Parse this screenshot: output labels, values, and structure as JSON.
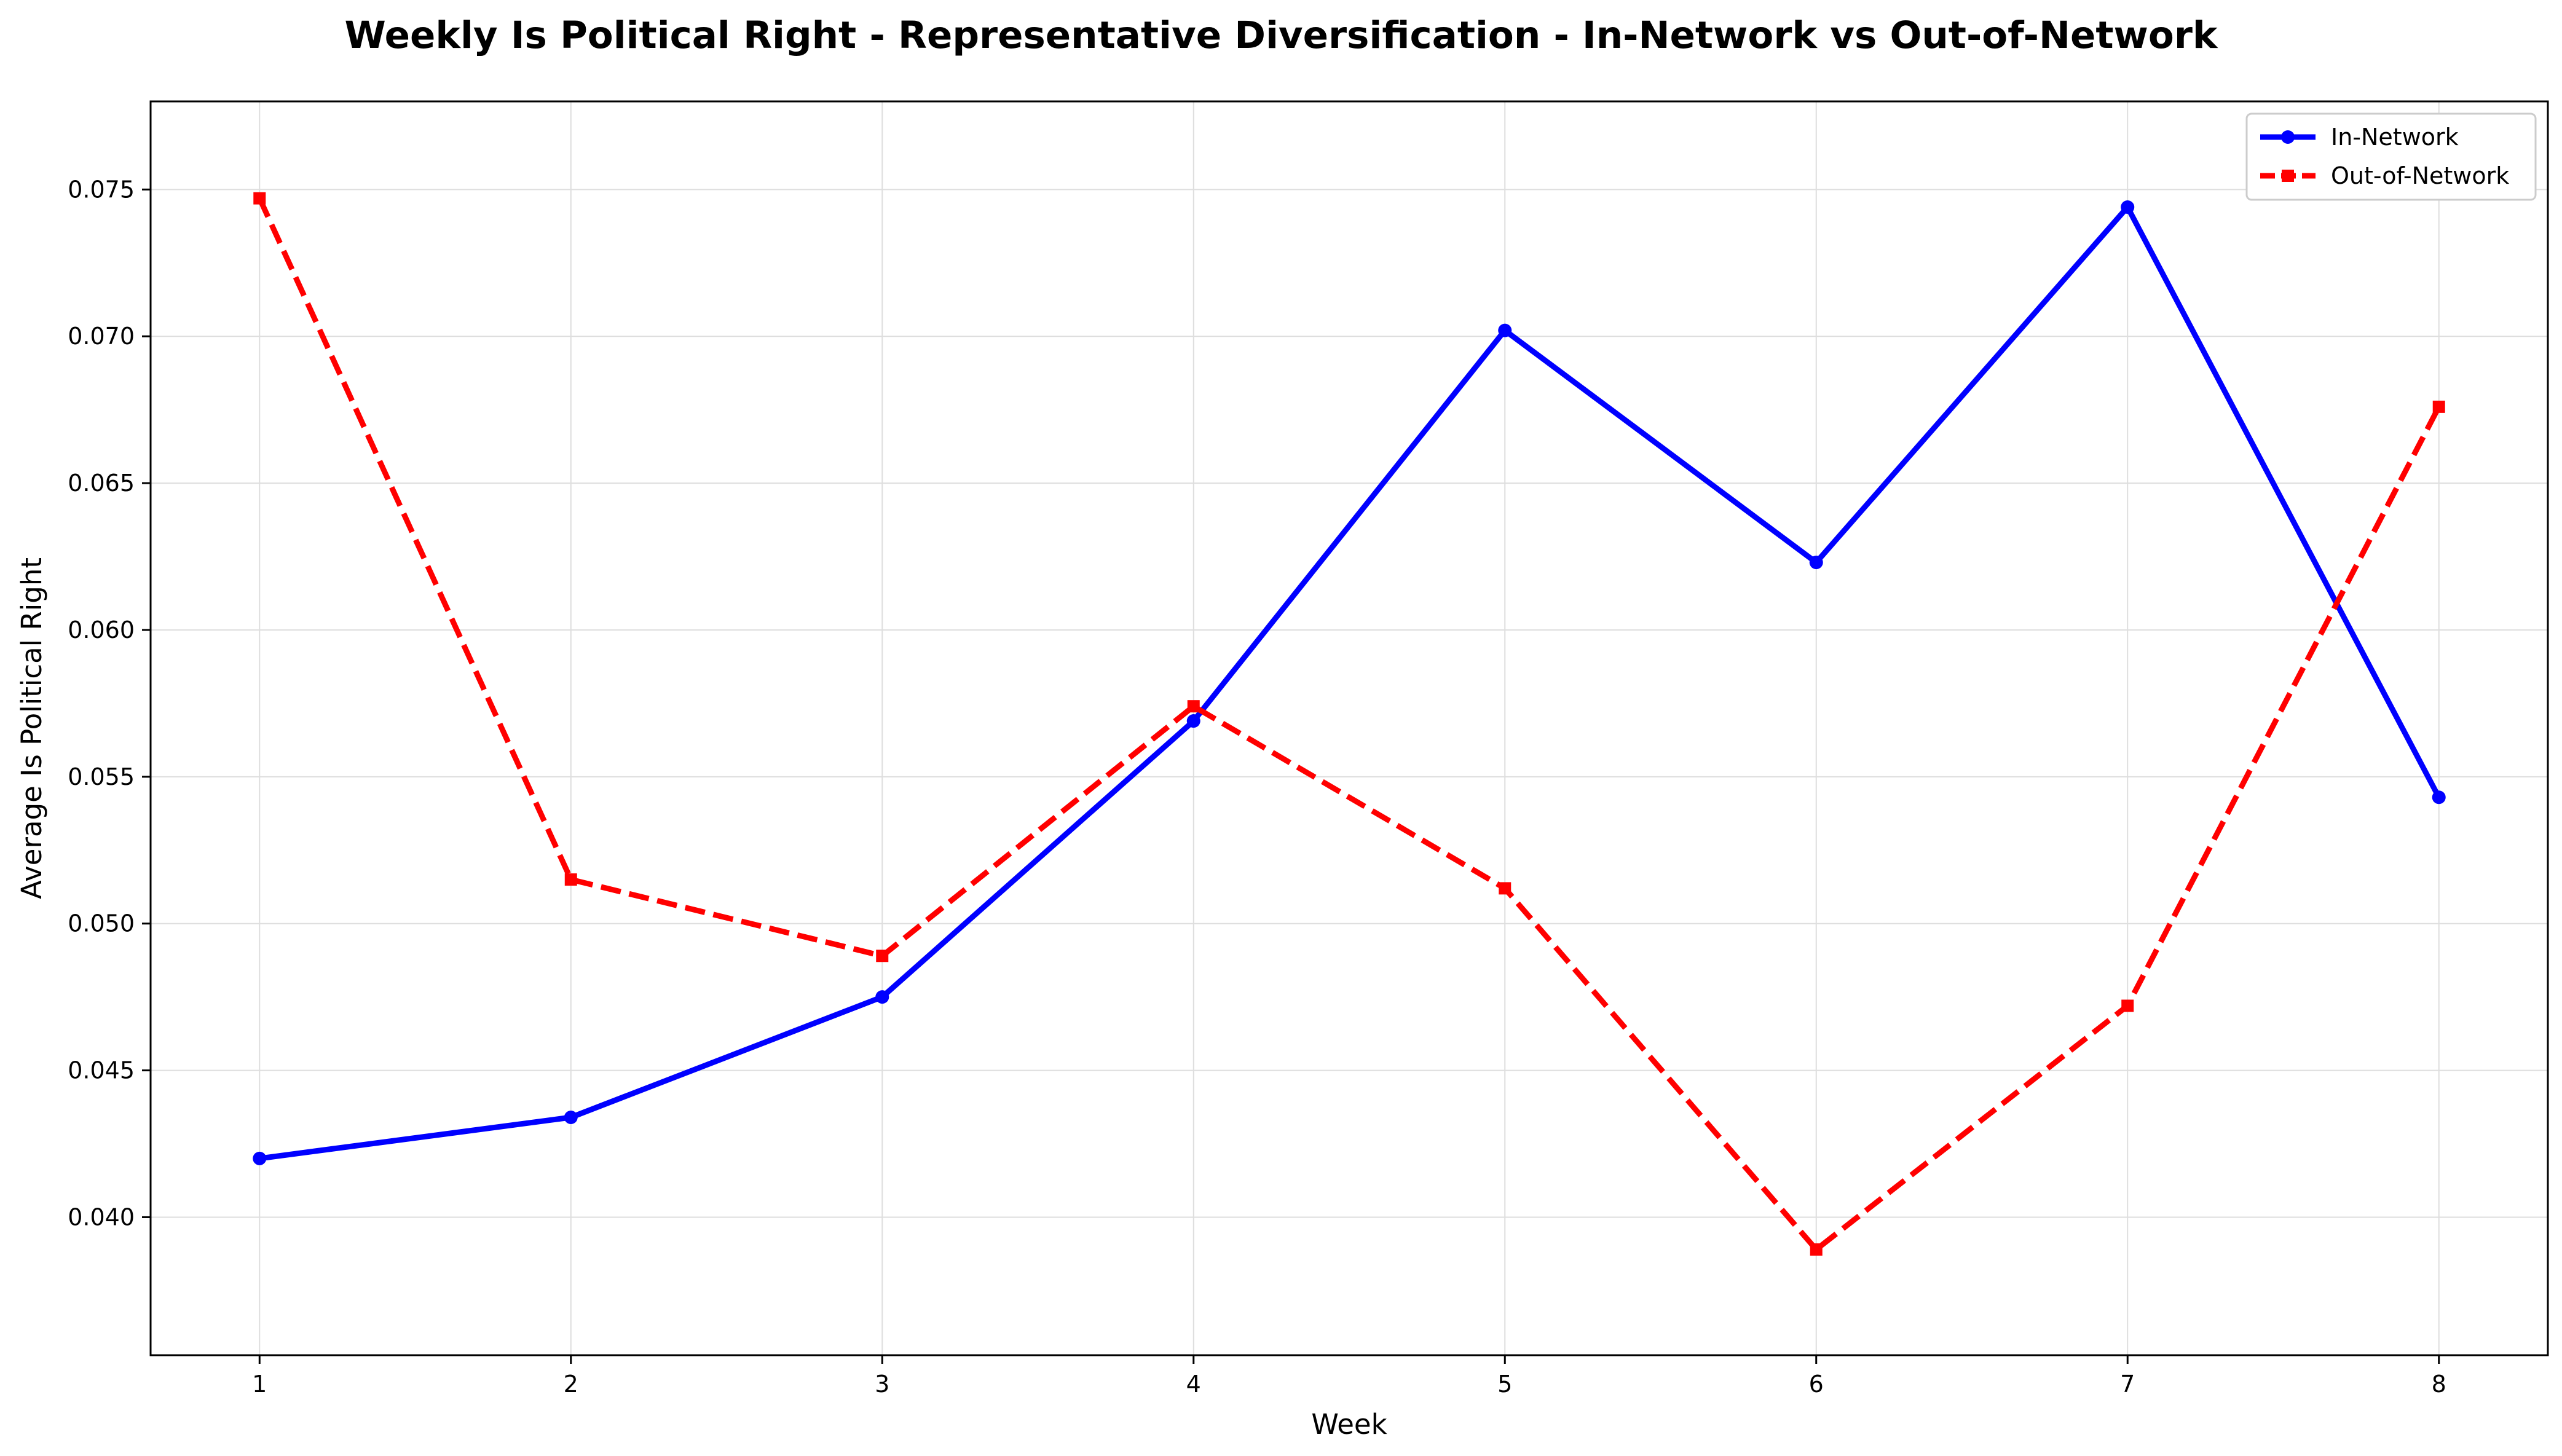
{
  "chart_data": {
    "type": "line",
    "title": "Weekly Is Political Right - Representative Diversification - In-Network vs Out-of-Network",
    "xlabel": "Week",
    "ylabel": "Average Is Political Right",
    "x": [
      1,
      2,
      3,
      4,
      5,
      6,
      7,
      8
    ],
    "x_ticks": [
      "1",
      "2",
      "3",
      "4",
      "5",
      "6",
      "7",
      "8"
    ],
    "xlim": [
      0.65,
      8.35
    ],
    "ylim": [
      0.0353,
      0.078
    ],
    "y_ticks": [
      "0.040",
      "0.045",
      "0.050",
      "0.055",
      "0.060",
      "0.065",
      "0.070",
      "0.075"
    ],
    "grid": true,
    "legend_position": "top-right",
    "series": [
      {
        "name": "In-Network",
        "color": "#0000ff",
        "line_style": "solid",
        "marker": "circle",
        "values": [
          0.042,
          0.0434,
          0.0475,
          0.0569,
          0.0702,
          0.0623,
          0.0744,
          0.0543
        ]
      },
      {
        "name": "Out-of-Network",
        "color": "#ff0000",
        "line_style": "dashed",
        "marker": "square",
        "values": [
          0.0747,
          0.0515,
          0.0489,
          0.0574,
          0.0512,
          0.0389,
          0.0472,
          0.0676
        ]
      }
    ]
  }
}
